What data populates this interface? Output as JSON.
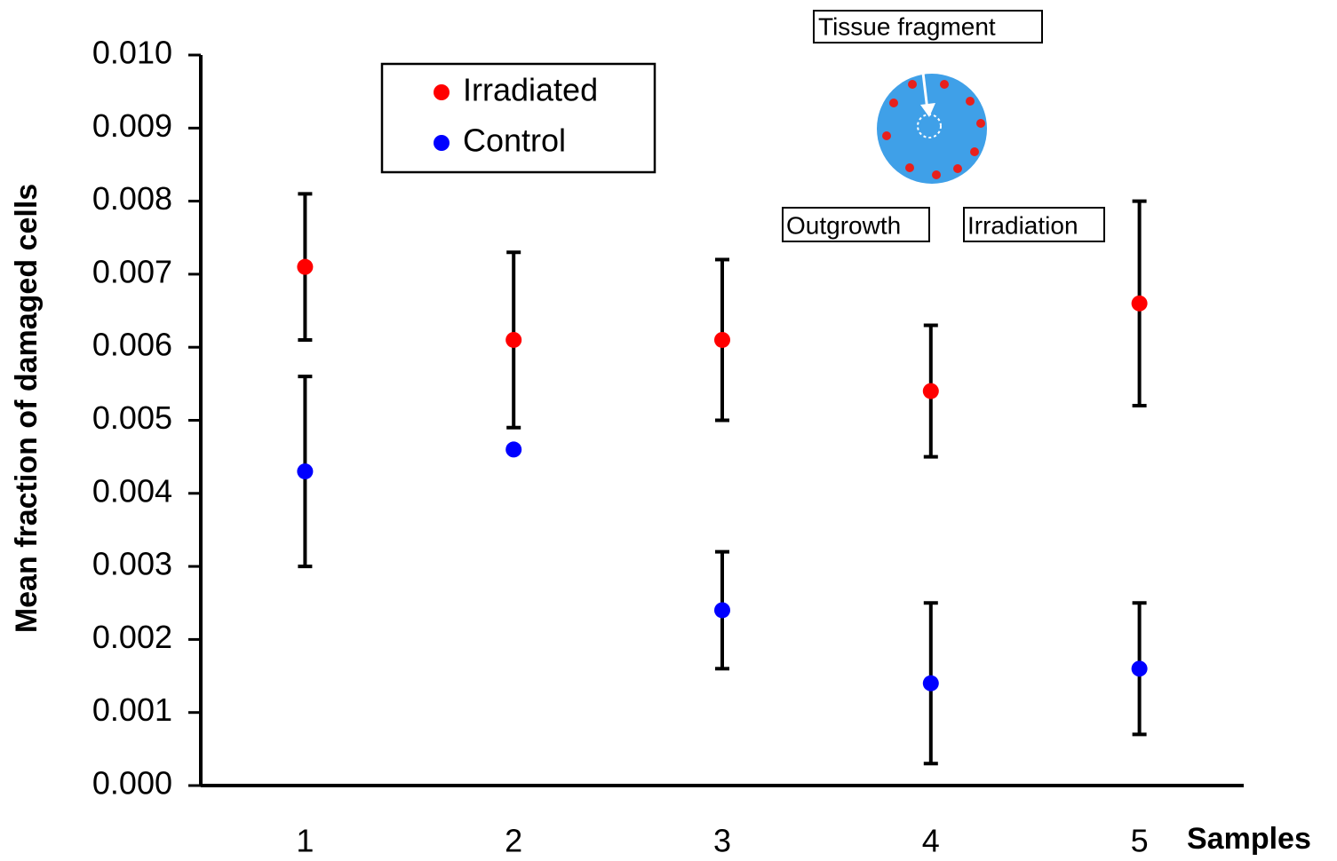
{
  "chart_data": {
    "type": "scatter",
    "ylabel": "Mean fraction of damaged cells",
    "xlabel": "Samples",
    "categories": [
      "1",
      "2",
      "3",
      "4",
      "5"
    ],
    "series": [
      {
        "name": "Irradiated",
        "color": "#ff0000",
        "values": [
          0.0071,
          0.0061,
          0.0061,
          0.0054,
          0.0066
        ],
        "errors": [
          0.001,
          0.0012,
          0.0011,
          0.0009,
          0.0014
        ]
      },
      {
        "name": "Control",
        "color": "#0000ff",
        "values": [
          0.0043,
          0.0046,
          0.0024,
          0.0014,
          0.0016
        ],
        "errors": [
          0.0013,
          null,
          0.0008,
          0.0011,
          0.0009
        ]
      }
    ],
    "ylim": [
      0,
      0.01
    ],
    "yticks": [
      {
        "value": 0,
        "label": "0.000"
      },
      {
        "value": 0.001,
        "label": "0.001"
      },
      {
        "value": 0.002,
        "label": "0.002"
      },
      {
        "value": 0.003,
        "label": "0.003"
      },
      {
        "value": 0.004,
        "label": "0.004"
      },
      {
        "value": 0.005,
        "label": "0.005"
      },
      {
        "value": 0.006,
        "label": "0.006"
      },
      {
        "value": 0.007,
        "label": "0.007"
      },
      {
        "value": 0.008,
        "label": "0.008"
      },
      {
        "value": 0.009,
        "label": "0.009"
      },
      {
        "value": 0.01,
        "label": "0.010"
      }
    ],
    "grid": false,
    "legend": "top-left",
    "annotations": [
      "Tissue fragment",
      "Outgrowth",
      "Irradiation"
    ]
  }
}
